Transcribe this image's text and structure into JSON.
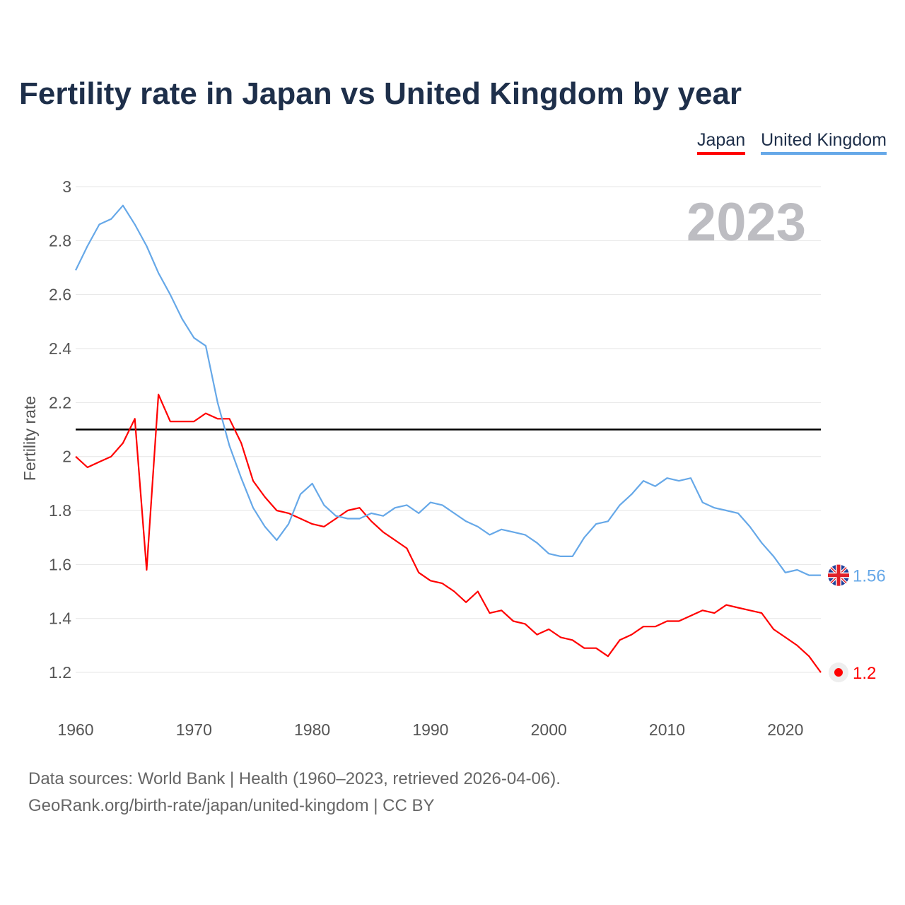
{
  "chart_data": {
    "type": "line",
    "title": "Fertility rate in Japan vs United Kingdom by year",
    "xlabel": "",
    "ylabel": "Fertility rate",
    "xlim": [
      1960,
      2023
    ],
    "ylim": [
      1.1,
      3.0
    ],
    "x_ticks": [
      "1960",
      "1970",
      "1980",
      "1990",
      "2000",
      "2010",
      "2020"
    ],
    "y_ticks": [
      "1.2",
      "1.4",
      "1.6",
      "1.8",
      "2",
      "2.2",
      "2.4",
      "2.6",
      "2.8",
      "3"
    ],
    "year_label": "2023",
    "reference_line": 2.1,
    "legend_position": "top-right",
    "x": [
      1960,
      1961,
      1962,
      1963,
      1964,
      1965,
      1966,
      1967,
      1968,
      1969,
      1970,
      1971,
      1972,
      1973,
      1974,
      1975,
      1976,
      1977,
      1978,
      1979,
      1980,
      1981,
      1982,
      1983,
      1984,
      1985,
      1986,
      1987,
      1988,
      1989,
      1990,
      1991,
      1992,
      1993,
      1994,
      1995,
      1996,
      1997,
      1998,
      1999,
      2000,
      2001,
      2002,
      2003,
      2004,
      2005,
      2006,
      2007,
      2008,
      2009,
      2010,
      2011,
      2012,
      2013,
      2014,
      2015,
      2016,
      2017,
      2018,
      2019,
      2020,
      2021,
      2022,
      2023
    ],
    "series": [
      {
        "name": "Japan",
        "color": "#ff0000",
        "end_label": "1.2",
        "values": [
          2.0,
          1.96,
          1.98,
          2.0,
          2.05,
          2.14,
          1.58,
          2.23,
          2.13,
          2.13,
          2.13,
          2.16,
          2.14,
          2.14,
          2.05,
          1.91,
          1.85,
          1.8,
          1.79,
          1.77,
          1.75,
          1.74,
          1.77,
          1.8,
          1.81,
          1.76,
          1.72,
          1.69,
          1.66,
          1.57,
          1.54,
          1.53,
          1.5,
          1.46,
          1.5,
          1.42,
          1.43,
          1.39,
          1.38,
          1.34,
          1.36,
          1.33,
          1.32,
          1.29,
          1.29,
          1.26,
          1.32,
          1.34,
          1.37,
          1.37,
          1.39,
          1.39,
          1.41,
          1.43,
          1.42,
          1.45,
          1.44,
          1.43,
          1.42,
          1.36,
          1.33,
          1.3,
          1.26,
          1.2
        ]
      },
      {
        "name": "United Kingdom",
        "color": "#66a8e8",
        "end_label": "1.56",
        "values": [
          2.69,
          2.78,
          2.86,
          2.88,
          2.93,
          2.86,
          2.78,
          2.68,
          2.6,
          2.51,
          2.44,
          2.41,
          2.2,
          2.04,
          1.92,
          1.81,
          1.74,
          1.69,
          1.75,
          1.86,
          1.9,
          1.82,
          1.78,
          1.77,
          1.77,
          1.79,
          1.78,
          1.81,
          1.82,
          1.79,
          1.83,
          1.82,
          1.79,
          1.76,
          1.74,
          1.71,
          1.73,
          1.72,
          1.71,
          1.68,
          1.64,
          1.63,
          1.63,
          1.7,
          1.75,
          1.76,
          1.82,
          1.86,
          1.91,
          1.89,
          1.92,
          1.91,
          1.92,
          1.83,
          1.81,
          1.8,
          1.79,
          1.74,
          1.68,
          1.63,
          1.57,
          1.58,
          1.56,
          1.56
        ]
      }
    ]
  },
  "source": {
    "line1": "Data sources: World Bank | Health (1960–2023, retrieved 2026-04-06).",
    "line2": "GeoRank.org/birth-rate/japan/united-kingdom | CC BY"
  }
}
